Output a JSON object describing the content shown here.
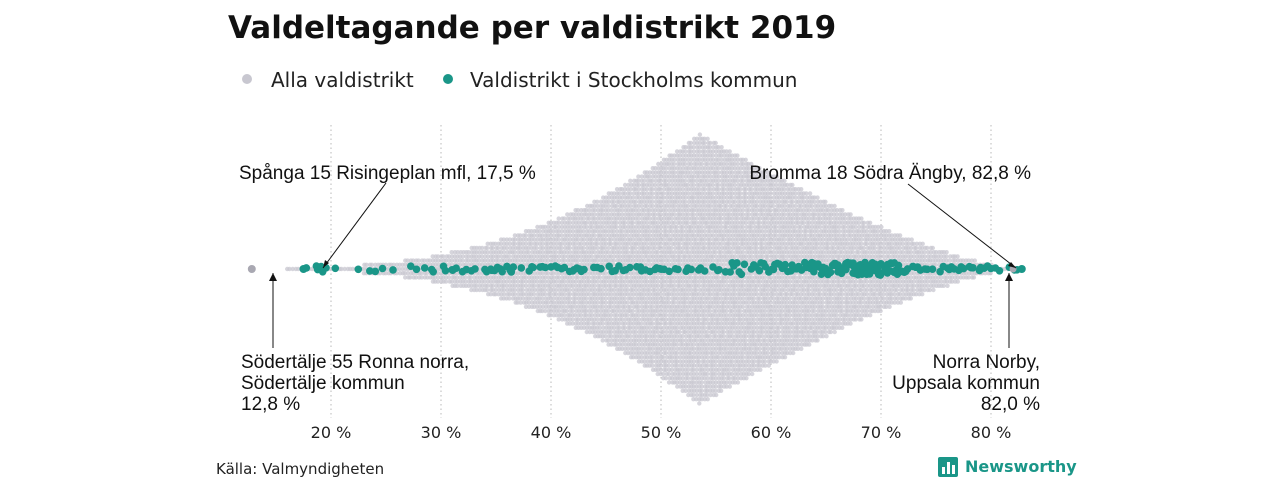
{
  "chart_data": {
    "type": "scatter",
    "title": "Valdeltagande per valdistrikt 2019",
    "x_unit": "%",
    "xlim": [
      12,
      84
    ],
    "x_ticks": [
      20,
      30,
      40,
      50,
      60,
      70,
      80
    ],
    "x_tick_labels": [
      "20 %",
      "30 %",
      "40 %",
      "50 %",
      "60 %",
      "70 %",
      "80 %"
    ],
    "grid": "vertical dotted",
    "legend_position": "top",
    "series": [
      {
        "name": "Alla valdistrikt",
        "color": "#c8c7d0",
        "distribution": {
          "min": 12.8,
          "max": 82.0,
          "mode": 53.5
        }
      },
      {
        "name": "Valdistrikt i Stockholms kommun",
        "color": "#1a9688",
        "distribution": {
          "min": 17.5,
          "max": 82.8,
          "mode": 68.5
        }
      }
    ],
    "annotations": [
      {
        "text_lines": [
          "Spånga 15 Risingeplan mfl, 17,5 %"
        ],
        "x": 17.5
      },
      {
        "text_lines": [
          "Bromma 18 Södra Ängby, 82,8 %"
        ],
        "x": 82.8
      },
      {
        "text_lines": [
          "Södertälje 55 Ronna norra,",
          "Södertälje kommun",
          "12,8 %"
        ],
        "x": 12.8
      },
      {
        "text_lines": [
          "Norra Norby,",
          "Uppsala kommun",
          "82,0 %"
        ],
        "x": 82.0
      }
    ]
  },
  "source": "Källa: Valmyndigheten",
  "brand": {
    "name": "Newsworthy",
    "color": "#1a9688"
  }
}
